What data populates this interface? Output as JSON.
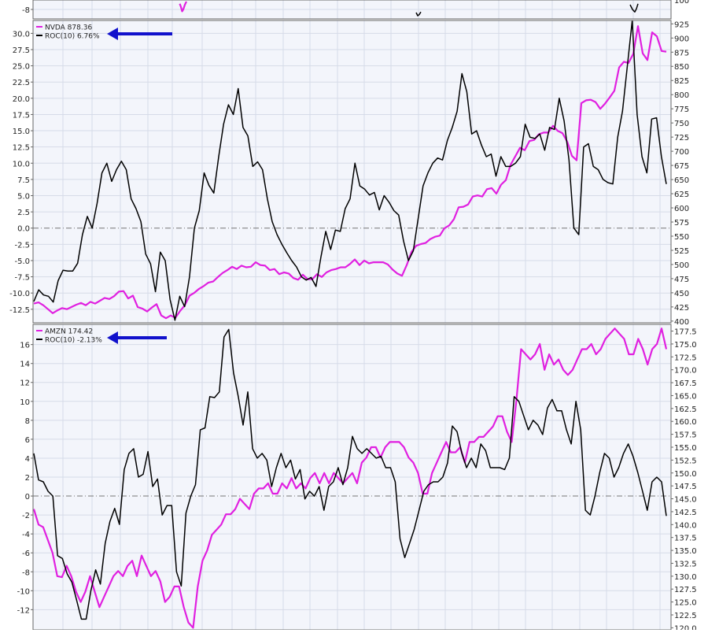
{
  "colors": {
    "price": "#e020e0",
    "roc": "#000000",
    "arrow": "#1111cc",
    "plot_bg": "#f3f5fb",
    "grid": "#d6dbe8",
    "frame": "#666666",
    "zero_line": "#777777"
  },
  "chart_data": [
    {
      "type": "line",
      "panel": "top-remnant",
      "ylim_left": [
        -10,
        -6
      ],
      "left_ticks": [
        "-8"
      ],
      "right_ticks": [
        "100"
      ],
      "series": [
        {
          "name": "",
          "x": [
            228.5,
            230,
            231.5,
            233,
            235,
            237
          ],
          "values": [
            -6.2,
            -7.2,
            -8.6,
            -8.0,
            -6.5,
            -5.5
          ],
          "color": "#e020e0"
        },
        {
          "name": "",
          "x": [
            529,
            531,
            533,
            535
          ],
          "values": [
            -9.0,
            -10.0,
            -9.6,
            -8.8
          ],
          "color": "#000000"
        },
        {
          "name": "",
          "x": [
            801,
            804,
            807,
            809,
            811
          ],
          "values": [
            -6.5,
            -8.0,
            -8.8,
            -7.8,
            -6.2
          ],
          "color": "#000000"
        }
      ]
    },
    {
      "type": "line",
      "panel": "nvda",
      "legend": [
        {
          "label": "NVDA 878.36",
          "color": "#e020e0"
        },
        {
          "label": "ROC(10) 6.76%",
          "color": "#000000"
        }
      ],
      "left_ticks": [
        "30.0",
        "27.5",
        "25.0",
        "22.5",
        "20.0",
        "17.5",
        "15.0",
        "12.5",
        "10.0",
        "7.5",
        "5.0",
        "2.5",
        "0.0",
        "-2.5",
        "-5.0",
        "-7.5",
        "-10.0",
        "-12.5"
      ],
      "right_ticks": [
        "925",
        "900",
        "875",
        "850",
        "825",
        "800",
        "775",
        "750",
        "725",
        "700",
        "675",
        "650",
        "625",
        "600",
        "575",
        "550",
        "525",
        "500",
        "475",
        "450",
        "425",
        "400"
      ],
      "ylim_left": [
        -14.1,
        31.5
      ],
      "ylim_right": [
        397,
        931
      ],
      "series": [
        {
          "name": "NVDA",
          "axis": "right",
          "color": "#e020e0",
          "values": [
            431,
            433,
            428,
            421,
            414,
            419,
            423,
            421,
            425,
            429,
            432,
            428,
            434,
            431,
            436,
            441,
            439,
            444,
            452,
            453,
            440,
            445,
            425,
            422,
            417,
            424,
            430,
            410,
            405,
            410,
            406,
            418,
            428,
            445,
            450,
            457,
            462,
            468,
            470,
            478,
            485,
            490,
            496,
            492,
            498,
            495,
            496,
            504,
            499,
            498,
            490,
            492,
            483,
            486,
            484,
            476,
            473,
            482,
            474,
            474,
            483,
            478,
            486,
            490,
            492,
            495,
            495,
            501,
            509,
            499,
            507,
            502,
            504,
            504,
            504,
            500,
            491,
            484,
            480,
            499,
            522,
            533,
            536,
            538,
            545,
            549,
            551,
            564,
            569,
            580,
            601,
            602,
            606,
            620,
            622,
            620,
            633,
            635,
            625,
            641,
            649,
            676,
            691,
            706,
            702,
            718,
            720,
            730,
            733,
            733,
            745,
            736,
            732,
            717,
            692,
            684,
            785,
            790,
            791,
            787,
            775,
            784,
            795,
            807,
            848,
            858,
            856,
            872,
            921,
            873,
            861,
            910,
            903,
            877,
            876
          ]
        },
        {
          "name": "ROC(10)",
          "axis": "left",
          "color": "#000000",
          "values": [
            -11.3,
            -9.5,
            -10.3,
            -10.5,
            -11.4,
            -8.1,
            -6.5,
            -6.6,
            -6.6,
            -5.4,
            -1.0,
            1.8,
            0.0,
            3.8,
            8.5,
            10.0,
            7.2,
            9.0,
            10.3,
            9.0,
            4.5,
            3.0,
            1.0,
            -4.0,
            -5.5,
            -9.8,
            -3.7,
            -5.0,
            -11.0,
            -14.2,
            -10.5,
            -12.1,
            -7.5,
            0.0,
            2.7,
            8.5,
            6.6,
            5.4,
            11.0,
            16.0,
            19.0,
            17.5,
            21.5,
            15.5,
            14.2,
            9.5,
            10.2,
            9.0,
            4.5,
            1.0,
            -1.0,
            -2.5,
            -3.8,
            -5.0,
            -6.0,
            -7.5,
            -8.0,
            -7.6,
            -9.0,
            -4.5,
            -0.5,
            -3.3,
            -0.3,
            -0.5,
            3.0,
            4.5,
            10.0,
            6.5,
            6.0,
            5.1,
            5.5,
            2.8,
            5.0,
            4.0,
            2.7,
            2.0,
            -2.0,
            -5.0,
            -3.5,
            1.5,
            6.5,
            8.5,
            10.0,
            10.8,
            10.5,
            13.5,
            15.5,
            18.0,
            23.8,
            21.0,
            14.5,
            15.0,
            12.8,
            11.0,
            11.4,
            8.0,
            11.0,
            9.5,
            9.5,
            10.0,
            11.0,
            16.0,
            14.0,
            13.8,
            14.5,
            12.0,
            15.5,
            15.2,
            20.0,
            16.5,
            10.5,
            0.0,
            -1.0,
            12.5,
            13.0,
            9.5,
            9.0,
            7.5,
            7.0,
            6.8,
            14.0,
            18.0,
            25.0,
            32.0,
            17.5,
            11.0,
            8.5,
            16.8,
            17.0,
            11.0,
            6.8
          ]
        }
      ]
    },
    {
      "type": "line",
      "panel": "amzn",
      "legend": [
        {
          "label": "AMZN 174.42",
          "color": "#e020e0"
        },
        {
          "label": "ROC(10) -2.13%",
          "color": "#000000"
        }
      ],
      "left_ticks": [
        "16",
        "14",
        "12",
        "10",
        "8",
        "6",
        "4",
        "2",
        "0",
        "-2",
        "-4",
        "-6",
        "-8",
        "-10",
        "-12"
      ],
      "right_ticks": [
        "177.5",
        "175.0",
        "172.5",
        "170.0",
        "167.5",
        "165.0",
        "162.5",
        "160.0",
        "157.5",
        "155.0",
        "152.5",
        "150.0",
        "147.5",
        "145.0",
        "142.5",
        "140.0",
        "137.5",
        "135.0",
        "132.5",
        "130.0",
        "127.5",
        "125.0",
        "122.5",
        "120.0"
      ],
      "ylim_left": [
        -13.8,
        17.8
      ],
      "ylim_right": [
        119.6,
        178.8
      ],
      "series": [
        {
          "name": "AMZN",
          "axis": "right",
          "color": "#e020e0",
          "values": [
            143,
            140,
            139.5,
            137,
            134.5,
            130,
            129.8,
            132,
            130,
            127,
            125,
            127,
            130,
            127,
            124,
            126,
            128,
            130,
            131,
            130,
            132,
            133,
            130,
            134,
            132,
            130,
            131,
            129,
            125,
            126,
            128,
            128,
            124,
            121,
            120,
            128,
            133,
            135,
            138,
            139,
            140,
            142,
            142,
            143,
            145,
            144,
            143,
            146,
            147,
            147,
            148,
            146,
            146,
            148,
            147,
            149,
            147,
            148,
            147,
            149,
            150,
            148,
            150,
            148,
            150,
            149,
            148,
            149,
            150,
            148,
            152,
            153,
            155,
            155,
            153,
            155,
            156,
            156,
            156,
            155,
            153,
            152,
            150,
            146,
            146,
            150,
            152,
            154,
            156,
            154,
            154,
            155,
            152,
            156,
            156,
            157,
            157,
            158,
            159,
            161,
            161,
            158,
            156,
            164,
            174,
            173,
            172,
            173,
            175,
            170,
            173,
            171,
            172,
            170,
            169,
            170,
            172,
            174,
            174,
            175,
            173,
            174,
            176,
            177,
            178,
            177,
            176,
            173,
            173,
            176,
            174,
            171,
            174,
            175,
            178,
            174
          ]
        },
        {
          "name": "ROC(10)",
          "axis": "left",
          "color": "#000000",
          "values": [
            4.5,
            1.7,
            1.5,
            0.5,
            0.0,
            -6.3,
            -6.6,
            -8.2,
            -9.1,
            -11.0,
            -13.0,
            -13.0,
            -10.0,
            -7.8,
            -9.3,
            -5.0,
            -2.7,
            -1.3,
            -3.0,
            2.8,
            4.5,
            5.0,
            2.0,
            2.3,
            4.7,
            1.0,
            1.8,
            -2.0,
            -1.0,
            -1.0,
            -8.0,
            -9.5,
            -1.8,
            0.0,
            1.2,
            7.0,
            7.2,
            10.5,
            10.4,
            11.0,
            16.8,
            17.6,
            13.0,
            10.5,
            7.5,
            11.0,
            5.0,
            4.0,
            4.5,
            3.8,
            1.0,
            3.0,
            4.5,
            3.0,
            3.8,
            1.8,
            2.8,
            -0.3,
            0.5,
            0.0,
            1.0,
            -1.5,
            1.0,
            1.5,
            3.0,
            1.2,
            3.0,
            6.3,
            5.0,
            4.5,
            5.0,
            4.5,
            4.0,
            4.2,
            3.0,
            3.0,
            1.5,
            -4.5,
            -6.5,
            -5.0,
            -3.5,
            -1.5,
            0.5,
            1.2,
            1.5,
            1.5,
            2.0,
            3.5,
            7.4,
            6.8,
            4.5,
            3.0,
            4.0,
            3.0,
            5.5,
            4.8,
            3.0,
            3.0,
            3.0,
            2.8,
            4.0,
            10.5,
            10.0,
            8.5,
            7.0,
            8.0,
            7.5,
            6.5,
            9.3,
            10.2,
            9.0,
            9.0,
            7.0,
            5.5,
            10.0,
            7.0,
            -1.5,
            -2.0,
            0.0,
            2.5,
            4.5,
            4.0,
            2.0,
            3.0,
            4.5,
            5.5,
            4.2,
            2.5,
            0.5,
            -1.5,
            1.5,
            2.0,
            1.5,
            -2.1
          ]
        }
      ]
    }
  ]
}
